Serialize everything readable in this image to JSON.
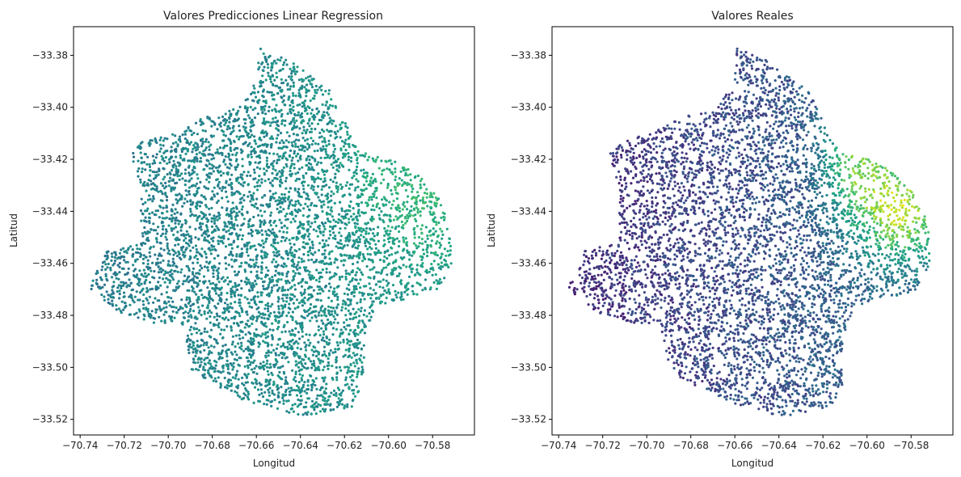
{
  "chart_data": [
    {
      "type": "scatter",
      "title": "Valores Predicciones Linear Regression",
      "xlabel": "Longitud",
      "ylabel": "Latitud",
      "xlim": [
        -70.743,
        -70.561
      ],
      "ylim": [
        -33.526,
        -33.369
      ],
      "xticks": [
        -70.74,
        -70.72,
        -70.7,
        -70.68,
        -70.66,
        -70.64,
        -70.62,
        -70.6,
        -70.58
      ],
      "xtick_labels": [
        "−70.74",
        "−70.72",
        "−70.70",
        "−70.68",
        "−70.66",
        "−70.64",
        "−70.62",
        "−70.60",
        "−70.58"
      ],
      "yticks": [
        -33.38,
        -33.4,
        -33.42,
        -33.44,
        -33.46,
        -33.48,
        -33.5,
        -33.52
      ],
      "ytick_labels": [
        "−33.38",
        "−33.40",
        "−33.42",
        "−33.44",
        "−33.46",
        "−33.48",
        "−33.50",
        "−33.52"
      ],
      "colormap": "viridis",
      "region_boundary": [
        [
          -70.659,
          -33.377
        ],
        [
          -70.643,
          -33.383
        ],
        [
          -70.627,
          -33.393
        ],
        [
          -70.621,
          -33.403
        ],
        [
          -70.616,
          -33.413
        ],
        [
          -70.61,
          -33.418
        ],
        [
          -70.598,
          -33.42
        ],
        [
          -70.585,
          -33.427
        ],
        [
          -70.576,
          -33.436
        ],
        [
          -70.572,
          -33.447
        ],
        [
          -70.571,
          -33.46
        ],
        [
          -70.577,
          -33.47
        ],
        [
          -70.592,
          -33.474
        ],
        [
          -70.605,
          -33.476
        ],
        [
          -70.611,
          -33.488
        ],
        [
          -70.611,
          -33.506
        ],
        [
          -70.616,
          -33.515
        ],
        [
          -70.638,
          -33.519
        ],
        [
          -70.665,
          -33.513
        ],
        [
          -70.689,
          -33.502
        ],
        [
          -70.694,
          -33.483
        ],
        [
          -70.707,
          -33.483
        ],
        [
          -70.722,
          -33.479
        ],
        [
          -70.736,
          -33.47
        ],
        [
          -70.728,
          -33.455
        ],
        [
          -70.713,
          -33.452
        ],
        [
          -70.712,
          -33.432
        ],
        [
          -70.717,
          -33.418
        ],
        [
          -70.712,
          -33.412
        ],
        [
          -70.698,
          -33.41
        ],
        [
          -70.684,
          -33.404
        ],
        [
          -70.668,
          -33.4
        ],
        [
          -70.66,
          -33.39
        ]
      ],
      "seed": 11,
      "point_count": 5200,
      "value_model": "prediccion",
      "value_range": [
        0.15,
        0.85
      ]
    },
    {
      "type": "scatter",
      "title": "Valores Reales",
      "xlabel": "Longitud",
      "ylabel": "Latitud",
      "xlim": [
        -70.743,
        -70.561
      ],
      "ylim": [
        -33.526,
        -33.369
      ],
      "xticks": [
        -70.74,
        -70.72,
        -70.7,
        -70.68,
        -70.66,
        -70.64,
        -70.62,
        -70.6,
        -70.58
      ],
      "xtick_labels": [
        "−70.74",
        "−70.72",
        "−70.70",
        "−70.68",
        "−70.66",
        "−70.64",
        "−70.62",
        "−70.60",
        "−70.58"
      ],
      "yticks": [
        -33.38,
        -33.4,
        -33.42,
        -33.44,
        -33.46,
        -33.48,
        -33.5,
        -33.52
      ],
      "ytick_labels": [
        "−33.38",
        "−33.40",
        "−33.42",
        "−33.44",
        "−33.46",
        "−33.48",
        "−33.50",
        "−33.52"
      ],
      "colormap": "viridis",
      "region_boundary": [
        [
          -70.659,
          -33.377
        ],
        [
          -70.643,
          -33.383
        ],
        [
          -70.627,
          -33.393
        ],
        [
          -70.621,
          -33.403
        ],
        [
          -70.616,
          -33.413
        ],
        [
          -70.61,
          -33.418
        ],
        [
          -70.598,
          -33.42
        ],
        [
          -70.585,
          -33.427
        ],
        [
          -70.576,
          -33.436
        ],
        [
          -70.572,
          -33.447
        ],
        [
          -70.571,
          -33.46
        ],
        [
          -70.577,
          -33.47
        ],
        [
          -70.592,
          -33.474
        ],
        [
          -70.605,
          -33.476
        ],
        [
          -70.611,
          -33.488
        ],
        [
          -70.611,
          -33.506
        ],
        [
          -70.616,
          -33.515
        ],
        [
          -70.638,
          -33.519
        ],
        [
          -70.665,
          -33.513
        ],
        [
          -70.689,
          -33.502
        ],
        [
          -70.694,
          -33.483
        ],
        [
          -70.707,
          -33.483
        ],
        [
          -70.722,
          -33.479
        ],
        [
          -70.736,
          -33.47
        ],
        [
          -70.728,
          -33.455
        ],
        [
          -70.713,
          -33.452
        ],
        [
          -70.712,
          -33.432
        ],
        [
          -70.717,
          -33.418
        ],
        [
          -70.712,
          -33.412
        ],
        [
          -70.698,
          -33.41
        ],
        [
          -70.684,
          -33.404
        ],
        [
          -70.668,
          -33.4
        ],
        [
          -70.66,
          -33.39
        ]
      ],
      "seed": 11,
      "point_count": 5200,
      "value_model": "real",
      "value_range": [
        0.0,
        1.0
      ]
    }
  ]
}
